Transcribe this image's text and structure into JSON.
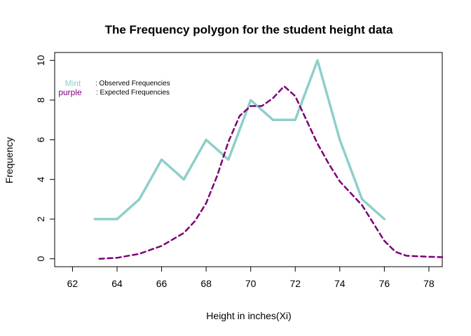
{
  "chart_data": {
    "type": "line",
    "title": "The Frequency polygon for the student height data",
    "xlabel": "Height in inches(Xi)",
    "ylabel": "Frequency",
    "xlim": [
      61.2,
      78.6
    ],
    "ylim": [
      -0.4,
      10.4
    ],
    "x_ticks": [
      62,
      64,
      66,
      68,
      70,
      72,
      74,
      76,
      78
    ],
    "y_ticks": [
      0,
      2,
      4,
      6,
      8,
      10
    ],
    "grid": false,
    "legend_position": "top-left",
    "series": [
      {
        "color": "#8ECFC9",
        "style": "solid",
        "x": [
          63,
          64,
          65,
          66,
          67,
          68,
          69,
          70,
          71,
          72,
          73,
          74,
          75,
          76
        ],
        "values": [
          2,
          2,
          3,
          5,
          4,
          6,
          5,
          8,
          7,
          7,
          10,
          6,
          3,
          2
        ]
      },
      {
        "color": "#7B0077",
        "style": "dashed",
        "x": [
          63.2,
          64,
          65,
          66,
          67,
          67.5,
          68,
          68.5,
          69,
          69.5,
          70,
          70.5,
          71,
          71.5,
          72,
          72.5,
          73,
          73.5,
          74,
          75,
          75.5,
          76,
          76.5,
          77,
          78,
          78.6
        ],
        "values": [
          0.0,
          0.05,
          0.25,
          0.65,
          1.3,
          1.9,
          2.8,
          4.2,
          5.9,
          7.2,
          7.7,
          7.7,
          8.1,
          8.7,
          8.2,
          7.0,
          5.8,
          4.8,
          3.9,
          2.7,
          1.8,
          0.9,
          0.35,
          0.15,
          0.1,
          0.08
        ]
      }
    ],
    "legend": [
      {
        "key": "Mint",
        "text": ": Observed Frequencies",
        "color": "#8ECFC9"
      },
      {
        "key": "purple",
        "text": ": Expected Frequencies",
        "color": "#7B0077"
      }
    ]
  }
}
